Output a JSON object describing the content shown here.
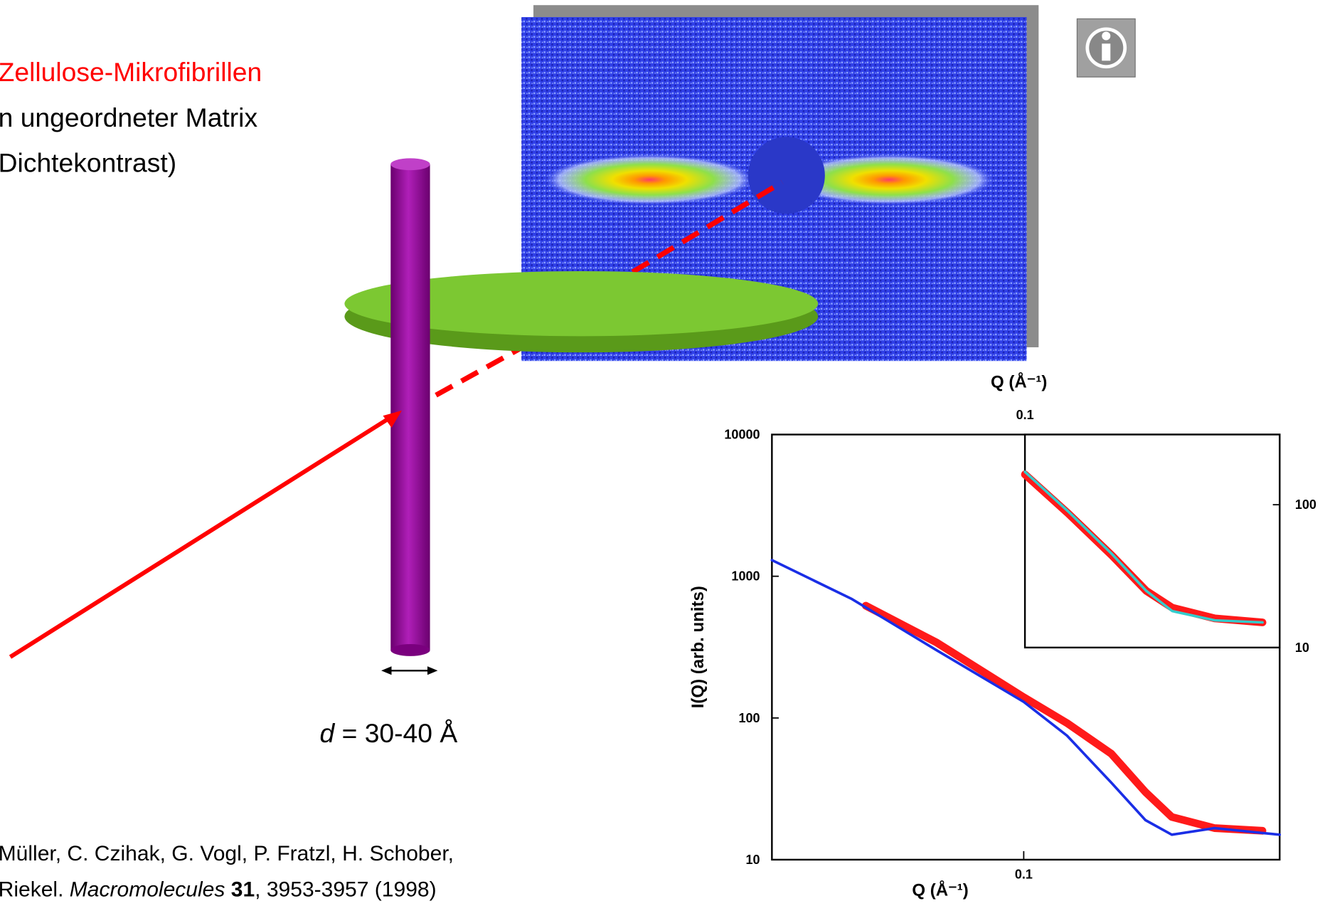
{
  "slide": {
    "heading_lines": [
      "Zellulose-Mikrofibrillen",
      "n ungeordneter Matrix",
      "Dichtekontrast)"
    ],
    "dimension": {
      "symbol": "d",
      "text": " = 30-40 Å"
    },
    "citation": {
      "line1": "Müller, C. Czihak, G. Vogl, P. Fratzl, H. Schober,",
      "line2_start": "Riekel. ",
      "journal": "Macromolecules",
      "volume": "31",
      "line2_end": ", 3953-3957 (1998)"
    }
  },
  "chart_data": [
    {
      "type": "line",
      "x_label": "Q (Å⁻¹)",
      "y_label": "I(Q) (arb. units)",
      "log_x": true,
      "log_y": true,
      "xlim": [
        0.03,
        0.34
      ],
      "ylim": [
        10,
        10000
      ],
      "xticks": [
        0.1
      ],
      "yticks": [
        10,
        100,
        1000,
        10000
      ],
      "series": [
        {
          "color": "#ff1a1a",
          "style": "markers",
          "x": [
            0.047,
            0.066,
            0.1,
            0.123,
            0.152,
            0.179,
            0.203,
            0.249,
            0.313
          ],
          "values": [
            620,
            340,
            140,
            92,
            56,
            30,
            20,
            16.7,
            16
          ]
        },
        {
          "color": "#1a2ee6",
          "style": "line",
          "x": [
            0.03,
            0.044,
            0.066,
            0.1,
            0.123,
            0.152,
            0.179,
            0.203,
            0.249,
            0.34
          ],
          "values": [
            1300,
            690,
            300,
            130,
            75,
            35,
            19,
            15,
            16.7,
            15
          ]
        }
      ]
    },
    {
      "type": "line",
      "x_label": "Q (Å⁻¹)",
      "log_x": true,
      "log_y": true,
      "xlim": [
        0.1,
        0.34
      ],
      "ylim": [
        10,
        310
      ],
      "xticks": [
        0.1
      ],
      "yticks": [
        10,
        100
      ],
      "series": [
        {
          "color": "#ff1a1a",
          "style": "markers",
          "x": [
            0.1,
            0.123,
            0.152,
            0.179,
            0.203,
            0.249,
            0.313
          ],
          "values": [
            163,
            87,
            44,
            25,
            19,
            16,
            15
          ]
        },
        {
          "color": "#33cccc",
          "style": "line",
          "x": [
            0.1,
            0.123,
            0.152,
            0.179,
            0.203,
            0.249,
            0.313
          ],
          "values": [
            170,
            90,
            45,
            25,
            18,
            15.5,
            15
          ]
        }
      ]
    }
  ]
}
